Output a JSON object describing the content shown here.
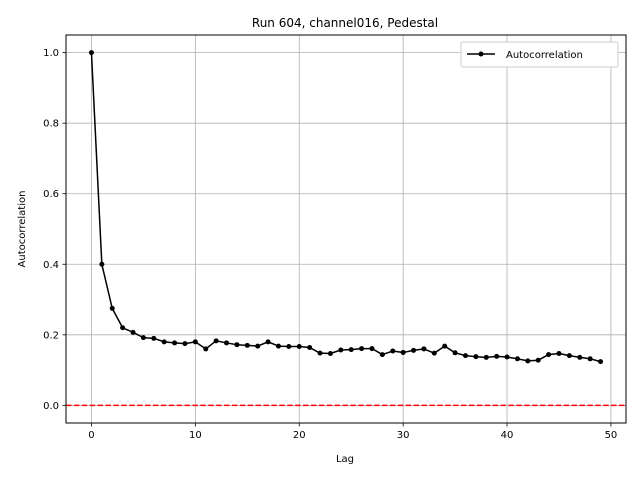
{
  "chart_data": {
    "type": "line",
    "title": "Run 604, channel016, Pedestal",
    "xlabel": "Lag",
    "ylabel": "Autocorrelation",
    "xlim": [
      -2.45,
      51.45
    ],
    "ylim": [
      -0.05,
      1.05
    ],
    "xticks": [
      0,
      10,
      20,
      30,
      40,
      50
    ],
    "yticks": [
      0.0,
      0.2,
      0.4,
      0.6,
      0.8,
      1.0
    ],
    "xtick_labels": [
      "0",
      "10",
      "20",
      "30",
      "40",
      "50"
    ],
    "ytick_labels": [
      "0.0",
      "0.2",
      "0.4",
      "0.6",
      "0.8",
      "1.0"
    ],
    "grid": true,
    "legend_position": "top-right",
    "series": [
      {
        "name": "Autocorrelation",
        "color": "#000000",
        "marker": "circle",
        "x": [
          0,
          1,
          2,
          3,
          4,
          5,
          6,
          7,
          8,
          9,
          10,
          11,
          12,
          13,
          14,
          15,
          16,
          17,
          18,
          19,
          20,
          21,
          22,
          23,
          24,
          25,
          26,
          27,
          28,
          29,
          30,
          31,
          32,
          33,
          34,
          35,
          36,
          37,
          38,
          39,
          40,
          41,
          42,
          43,
          44,
          45,
          46,
          47,
          48,
          49
        ],
        "y": [
          1.0,
          0.4,
          0.275,
          0.22,
          0.207,
          0.192,
          0.19,
          0.18,
          0.177,
          0.175,
          0.18,
          0.16,
          0.183,
          0.177,
          0.172,
          0.17,
          0.168,
          0.18,
          0.168,
          0.167,
          0.167,
          0.164,
          0.148,
          0.147,
          0.157,
          0.158,
          0.161,
          0.161,
          0.144,
          0.154,
          0.15,
          0.156,
          0.16,
          0.148,
          0.168,
          0.149,
          0.141,
          0.138,
          0.136,
          0.139,
          0.137,
          0.132,
          0.126,
          0.128,
          0.144,
          0.147,
          0.141,
          0.136,
          0.132,
          0.124
        ]
      }
    ],
    "reference_line": {
      "y": 0.0,
      "color": "#ff0000",
      "style": "dashed"
    }
  }
}
